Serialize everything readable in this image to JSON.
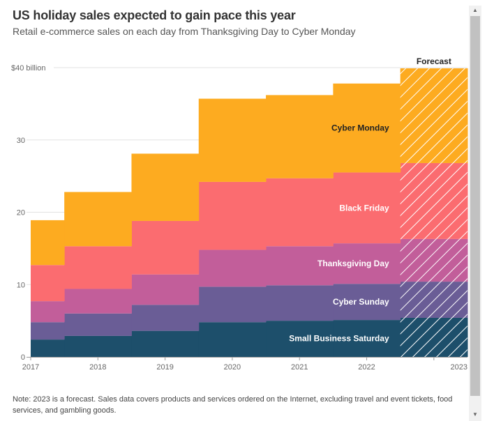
{
  "header": {
    "title": "US holiday sales expected to gain pace this year",
    "subtitle": "Retail e-commerce sales on each day from Thanksgiving Day to Cyber Monday"
  },
  "note": "Note: 2023 is a forecast. Sales data covers products and services ordered on the Internet, excluding travel and event tickets, food services, and gambling goods.",
  "colors": {
    "Small Business Saturday": "#1d4f6b",
    "Cyber Sunday": "#6a5d96",
    "Thanksgiving Day": "#c25e9a",
    "Black Friday": "#fb6c70",
    "Cyber Monday": "#fdab20"
  },
  "chart_data": {
    "type": "area",
    "stacked": true,
    "step": true,
    "categories": [
      "2017",
      "2018",
      "2019",
      "2020",
      "2021",
      "2022",
      "2023"
    ],
    "forecast_categories": [
      "2023"
    ],
    "forecast_label": "Forecast",
    "series": [
      {
        "name": "Small Business Saturday",
        "values": [
          2.4,
          2.9,
          3.6,
          4.8,
          5.0,
          5.1,
          5.4
        ]
      },
      {
        "name": "Cyber Sunday",
        "values": [
          2.4,
          3.1,
          3.6,
          4.9,
          4.9,
          5.0,
          5.0
        ]
      },
      {
        "name": "Thanksgiving Day",
        "values": [
          2.9,
          3.4,
          4.2,
          5.1,
          5.4,
          5.6,
          5.9
        ]
      },
      {
        "name": "Black Friday",
        "values": [
          5.0,
          5.9,
          7.4,
          9.4,
          9.4,
          9.8,
          10.5
        ]
      },
      {
        "name": "Cyber Monday",
        "values": [
          6.2,
          7.5,
          9.3,
          11.5,
          11.5,
          12.3,
          13.1
        ]
      }
    ],
    "ylim": [
      0,
      40
    ],
    "yticks": [
      0,
      10,
      20,
      30,
      40
    ],
    "ytick_labels": [
      "0",
      "10",
      "20",
      "30",
      "$40 billion"
    ],
    "xlabel": "",
    "ylabel": ""
  },
  "scrollbar": {
    "up_icon": "▲",
    "down_icon": "▼"
  }
}
